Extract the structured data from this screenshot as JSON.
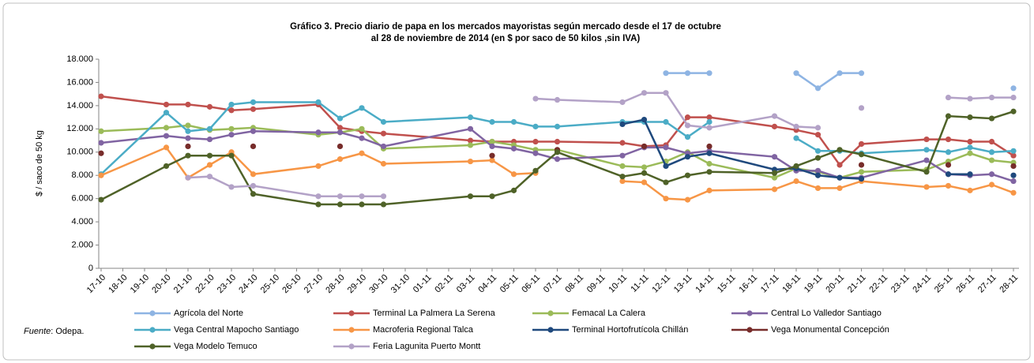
{
  "chart_data": {
    "type": "line",
    "title": [
      "Gráfico 3. Precio diario de papa en los mercados mayoristas según mercado desde el 17 de octubre",
      "al 28 de noviembre de 2014  (en $ por saco de 50 kilos ,sin IVA)"
    ],
    "y_label": "$ / saco de 50 kg",
    "source": {
      "label": "Fuente",
      "text": ": Odepa."
    },
    "categories": [
      "17-10",
      "18-10",
      "19-10",
      "20-10",
      "21-10",
      "22-10",
      "23-10",
      "24-10",
      "25-10",
      "26-10",
      "27-10",
      "28-10",
      "29-10",
      "30-10",
      "31-10",
      "01-11",
      "02-11",
      "03-11",
      "04-11",
      "05-11",
      "06-11",
      "07-11",
      "08-11",
      "09-11",
      "10-11",
      "11-11",
      "12-11",
      "13-11",
      "14-11",
      "15-11",
      "16-11",
      "17-11",
      "18-11",
      "19-11",
      "20-11",
      "21-11",
      "22-11",
      "23-11",
      "24-11",
      "25-11",
      "26-11",
      "27-11",
      "28-11"
    ],
    "x": [
      "17-10",
      "20-10",
      "21-10",
      "22-10",
      "23-10",
      "24-10",
      "27-10",
      "28-10",
      "29-10",
      "30-10",
      "03-11",
      "04-11",
      "05-11",
      "06-11",
      "07-11",
      "10-11",
      "11-11",
      "12-11",
      "13-11",
      "14-11",
      "17-11",
      "18-11",
      "19-11",
      "20-11",
      "21-11",
      "24-11",
      "25-11",
      "26-11",
      "27-11",
      "28-11"
    ],
    "ylim": [
      0,
      18000
    ],
    "yticks": [
      0,
      {
        "value": 2000,
        "label": "2.000"
      },
      {
        "value": 4000,
        "label": "4.000"
      },
      {
        "value": 6000,
        "label": "6.000"
      },
      {
        "value": 8000,
        "label": "8.000"
      },
      {
        "value": 10000,
        "label": "10.000"
      },
      {
        "value": 12000,
        "label": "12.000"
      },
      {
        "value": 14000,
        "label": "14.000"
      },
      {
        "value": 16000,
        "label": "16.000"
      },
      {
        "value": 18000,
        "label": "18.000"
      }
    ],
    "grid": false,
    "series": [
      {
        "name": "Agrícola del Norte",
        "color": "#8eb4e3",
        "values": [
          null,
          null,
          null,
          null,
          null,
          null,
          null,
          null,
          null,
          null,
          null,
          null,
          null,
          null,
          null,
          null,
          null,
          16800,
          16800,
          16800,
          null,
          16800,
          15500,
          16800,
          16800,
          null,
          null,
          null,
          null,
          15500
        ]
      },
      {
        "name": "Terminal La Palmera La Serena",
        "color": "#c0504d",
        "values": [
          14800,
          14100,
          14100,
          13900,
          13600,
          13700,
          14100,
          12100,
          11800,
          11600,
          11000,
          10900,
          10900,
          10900,
          10900,
          10800,
          10500,
          10600,
          13000,
          13000,
          12200,
          11900,
          11500,
          8900,
          10700,
          11100,
          11100,
          10900,
          10900,
          9700
        ]
      },
      {
        "name": "Femacal La Calera",
        "color": "#9bbb59",
        "values": [
          11800,
          12100,
          12300,
          11900,
          12000,
          12100,
          11500,
          11700,
          12000,
          10300,
          10600,
          10900,
          10600,
          10200,
          10200,
          8800,
          8700,
          9200,
          10000,
          9000,
          7800,
          8600,
          8300,
          7800,
          8300,
          8500,
          9200,
          9900,
          9300,
          9100
        ]
      },
      {
        "name": "Central Lo Valledor Santiago",
        "color": "#8064a2",
        "values": [
          10800,
          11400,
          11200,
          11100,
          11500,
          11800,
          11700,
          11700,
          11200,
          10500,
          12000,
          10500,
          10300,
          9900,
          9400,
          9700,
          10400,
          10400,
          9900,
          10100,
          9600,
          8400,
          8400,
          7800,
          7800,
          9300,
          8100,
          8000,
          8100,
          7500
        ]
      },
      {
        "name": "Vega Central Mapocho Santiago",
        "color": "#4bacc6",
        "values": [
          8100,
          13400,
          11800,
          12000,
          14100,
          14300,
          14300,
          12900,
          13800,
          12600,
          13000,
          12600,
          12600,
          12200,
          12200,
          12600,
          12600,
          12600,
          11300,
          12600,
          null,
          11200,
          10100,
          10100,
          9900,
          10200,
          10000,
          10400,
          10000,
          10100
        ]
      },
      {
        "name": "Macroferia Regional Talca",
        "color": "#f79646",
        "values": [
          8000,
          10400,
          7800,
          8900,
          10000,
          8100,
          8800,
          9400,
          9900,
          9000,
          9200,
          9300,
          8100,
          8200,
          null,
          7500,
          7400,
          6000,
          5900,
          6700,
          6800,
          7500,
          6900,
          6900,
          7500,
          7000,
          7100,
          6700,
          7200,
          6500
        ]
      },
      {
        "name": "Terminal Hortofrutícola  Chillán",
        "color": "#1f497d",
        "values": [
          null,
          null,
          null,
          null,
          null,
          null,
          null,
          null,
          null,
          null,
          null,
          null,
          null,
          null,
          null,
          12400,
          12800,
          8800,
          9600,
          9900,
          8500,
          8600,
          8000,
          7800,
          7700,
          null,
          8100,
          8100,
          null,
          8000
        ]
      },
      {
        "name": "Vega Monumental Concepción",
        "color": "#772c2a",
        "values": [
          9900,
          null,
          10500,
          null,
          null,
          10500,
          null,
          10500,
          null,
          null,
          null,
          9700,
          null,
          null,
          10200,
          null,
          10500,
          null,
          null,
          10500,
          null,
          null,
          null,
          null,
          8900,
          null,
          8900,
          null,
          null,
          8800
        ]
      },
      {
        "name": "Vega Modelo Temuco",
        "color": "#4f6228",
        "values": [
          5900,
          8800,
          9700,
          9700,
          9700,
          6400,
          5500,
          5500,
          5500,
          5500,
          6200,
          6200,
          6700,
          8400,
          10000,
          7900,
          8200,
          7400,
          8000,
          8300,
          8200,
          8800,
          9500,
          10200,
          9800,
          8300,
          13100,
          13000,
          12900,
          13500
        ]
      },
      {
        "name": "Feria Lagunita Puerto Montt",
        "color": "#b3a2c7",
        "values": [
          null,
          null,
          7800,
          7900,
          7000,
          7100,
          6200,
          6200,
          6200,
          6200,
          null,
          null,
          null,
          14600,
          14500,
          14300,
          15100,
          15100,
          12300,
          12100,
          13100,
          12200,
          12100,
          null,
          13800,
          null,
          14700,
          14600,
          14700,
          14700
        ]
      }
    ]
  }
}
